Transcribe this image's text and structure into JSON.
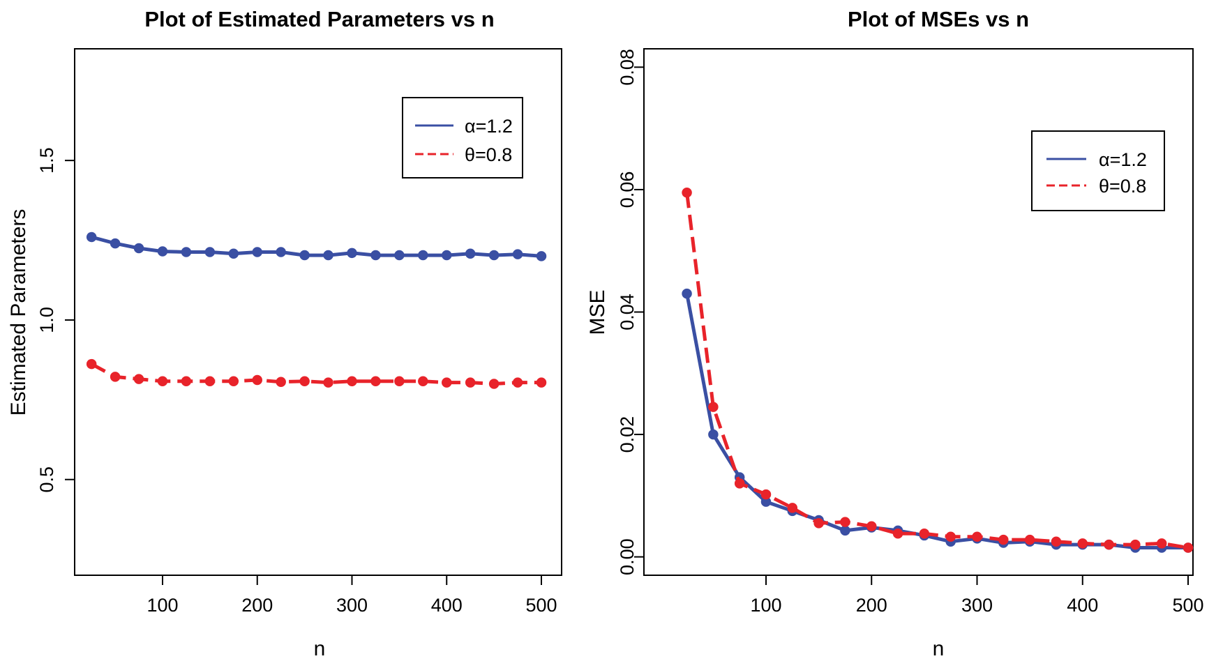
{
  "chart_data": [
    {
      "type": "line",
      "title": "Plot of Estimated Parameters vs n",
      "xlabel": "n",
      "ylabel": "Estimated Parameters",
      "xlim": [
        25,
        500
      ],
      "ylim": [
        0.2,
        1.85
      ],
      "xticks": [
        100,
        200,
        300,
        400,
        500
      ],
      "yticks": [
        0.5,
        1.0,
        1.5
      ],
      "ytick_labels": [
        "0.5",
        "1.0",
        "1.5"
      ],
      "x": [
        25,
        50,
        75,
        100,
        125,
        150,
        175,
        200,
        225,
        250,
        275,
        300,
        325,
        350,
        375,
        400,
        425,
        450,
        475,
        500
      ],
      "legend_position": "top-right",
      "series": [
        {
          "name": "α=1.2",
          "color": "#3a4fa3",
          "dash": "solid",
          "values": [
            1.26,
            1.24,
            1.225,
            1.215,
            1.213,
            1.213,
            1.208,
            1.213,
            1.213,
            1.203,
            1.203,
            1.21,
            1.203,
            1.203,
            1.203,
            1.203,
            1.208,
            1.203,
            1.206,
            1.2
          ]
        },
        {
          "name": "θ=0.8",
          "color": "#e8232a",
          "dash": "dashed",
          "values": [
            0.862,
            0.822,
            0.815,
            0.808,
            0.808,
            0.808,
            0.808,
            0.812,
            0.806,
            0.808,
            0.804,
            0.808,
            0.808,
            0.808,
            0.808,
            0.804,
            0.804,
            0.8,
            0.804,
            0.804
          ]
        }
      ]
    },
    {
      "type": "line",
      "title": "Plot of MSEs vs n",
      "xlabel": "n",
      "ylabel": "MSE",
      "xlim": [
        25,
        500
      ],
      "ylim": [
        -0.003,
        0.083
      ],
      "xticks": [
        100,
        200,
        300,
        400,
        500
      ],
      "yticks": [
        0.0,
        0.02,
        0.04,
        0.06,
        0.08
      ],
      "ytick_labels": [
        "0.00",
        "0.02",
        "0.04",
        "0.06",
        "0.08"
      ],
      "x": [
        25,
        50,
        75,
        100,
        125,
        150,
        175,
        200,
        225,
        250,
        275,
        300,
        325,
        350,
        375,
        400,
        425,
        450,
        475,
        500
      ],
      "legend_position": "top-right",
      "series": [
        {
          "name": "α=1.2",
          "color": "#3a4fa3",
          "dash": "solid",
          "values": [
            0.043,
            0.02,
            0.013,
            0.009,
            0.0075,
            0.006,
            0.0043,
            0.0048,
            0.0043,
            0.0035,
            0.0025,
            0.003,
            0.0023,
            0.0025,
            0.002,
            0.002,
            0.002,
            0.0015,
            0.0015,
            0.0015
          ]
        },
        {
          "name": "θ=0.8",
          "color": "#e8232a",
          "dash": "dashed",
          "values": [
            0.0595,
            0.0245,
            0.012,
            0.0102,
            0.008,
            0.0055,
            0.0057,
            0.005,
            0.0038,
            0.0038,
            0.0033,
            0.0033,
            0.0028,
            0.0028,
            0.0025,
            0.0022,
            0.002,
            0.002,
            0.0022,
            0.0015
          ]
        }
      ]
    }
  ]
}
